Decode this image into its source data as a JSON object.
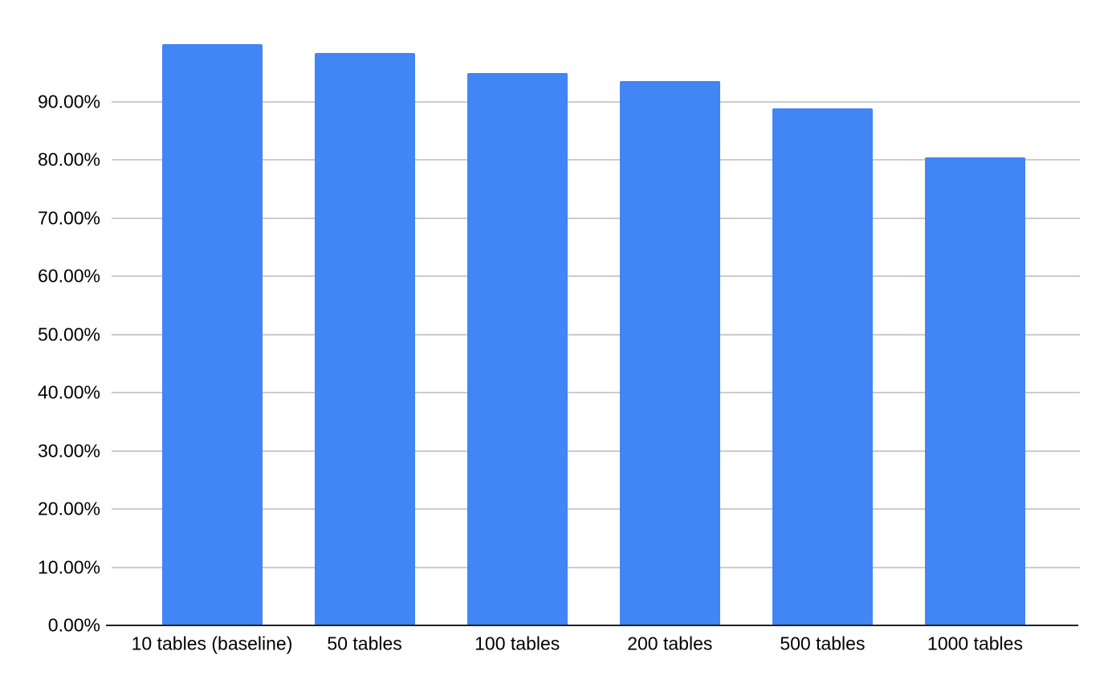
{
  "chart_data": {
    "type": "bar",
    "title": "",
    "xlabel": "",
    "ylabel": "",
    "categories": [
      "10 tables (baseline)",
      "50 tables",
      "100 tables",
      "200 tables",
      "500 tables",
      "1000 tables"
    ],
    "values": [
      100.0,
      98.4,
      95.0,
      93.6,
      88.9,
      80.5
    ],
    "value_unit": "%",
    "ylim": [
      0,
      100
    ],
    "y_tick_labels": [
      "0.00%",
      "10.00%",
      "20.00%",
      "30.00%",
      "40.00%",
      "50.00%",
      "60.00%",
      "70.00%",
      "80.00%",
      "90.00%"
    ],
    "grid": true,
    "legend": "none",
    "colors": {
      "bar": "#4285f4",
      "gridline": "#cccccc",
      "axis_line": "#212121",
      "label_text": "#000000",
      "background": "#ffffff"
    }
  }
}
